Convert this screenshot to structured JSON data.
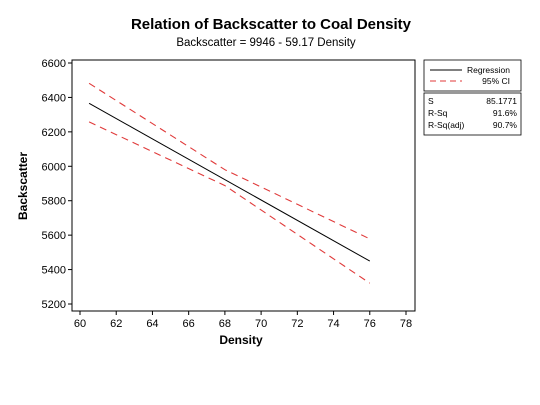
{
  "chart_data": {
    "type": "line",
    "title": "Relation of Backscatter to Coal Density",
    "subtitle": "Backscatter = 9946 - 59.17 Density",
    "xlabel": "Density",
    "ylabel": "Backscatter",
    "xlim": [
      60,
      78
    ],
    "ylim": [
      5200,
      6600
    ],
    "xticks": [
      "60",
      "62",
      "64",
      "66",
      "68",
      "70",
      "72",
      "74",
      "76",
      "78"
    ],
    "yticks": [
      "5200",
      "5400",
      "5600",
      "5800",
      "6000",
      "6200",
      "6400",
      "6600"
    ],
    "grid": false,
    "legend_position": "right",
    "series": [
      {
        "name": "Regression",
        "style": "solid",
        "color": "#000000",
        "x": [
          60.5,
          76
        ],
        "y": [
          6366,
          5449
        ]
      },
      {
        "name": "95% CI",
        "style": "dashed",
        "color": "#e03a3a",
        "x": [
          60.5,
          68,
          76
        ],
        "y": [
          6482,
          5980,
          5578
        ]
      },
      {
        "name": "95% CI (lower)",
        "style": "dashed",
        "color": "#e03a3a",
        "x": [
          60.5,
          68,
          76
        ],
        "y": [
          6258,
          5888,
          5321
        ]
      }
    ],
    "legend": [
      {
        "label": "Regression",
        "style": "solid",
        "color": "#000000"
      },
      {
        "label": "95% CI",
        "style": "dashed",
        "color": "#e03a3a"
      }
    ],
    "stats": [
      {
        "label": "S",
        "value": "85.1771"
      },
      {
        "label": "R-Sq",
        "value": "91.6%"
      },
      {
        "label": "R-Sq(adj)",
        "value": "90.7%"
      }
    ]
  }
}
